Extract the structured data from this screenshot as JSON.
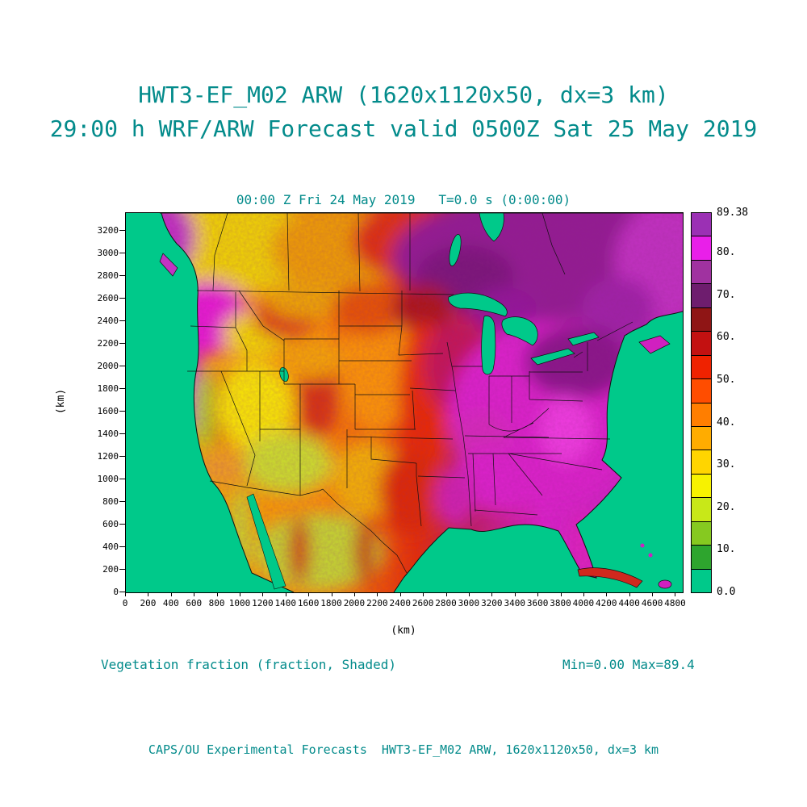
{
  "page": {
    "title_line1": "HWT3-EF_M02 ARW (1620x1120x50, dx=3 km)",
    "title_line2": "29:00 h WRF/ARW Forecast valid 0500Z Sat 25 May 2019",
    "footer": "CAPS/OU Experimental Forecasts  HWT3-EF_M02 ARW, 1620x1120x50, dx=3 km",
    "accent_color": "#038b8b"
  },
  "chart_data": {
    "type": "heatmap",
    "title": "00:00 Z Fri 24 May 2019   T=0.0 s (0:00:00)",
    "variable": "Vegetation fraction (fraction, Shaded)",
    "stats": "Min=0.00 Max=89.4",
    "xlabel": "(km)",
    "ylabel": "(km)",
    "x_range": [
      0,
      4860
    ],
    "y_range": [
      0,
      3360
    ],
    "x_ticks": [
      0,
      200,
      400,
      600,
      800,
      1000,
      1200,
      1400,
      1600,
      1800,
      2000,
      2200,
      2400,
      2600,
      2800,
      3000,
      3200,
      3400,
      3600,
      3800,
      4000,
      4200,
      4400,
      4600,
      4800
    ],
    "y_ticks": [
      0,
      200,
      400,
      600,
      800,
      1000,
      1200,
      1400,
      1600,
      1800,
      2000,
      2200,
      2400,
      2600,
      2800,
      3000,
      3200
    ],
    "grid": false,
    "legend_position": "right-colorbar",
    "region_depicted": "Continental United States, southern Canada, northern Mexico",
    "colorbar": {
      "min": 0.0,
      "max": 89.38,
      "labels": [
        "0.0",
        "10.",
        "20.",
        "30.",
        "40.",
        "50.",
        "60.",
        "70.",
        "80.",
        "89.38"
      ],
      "label_values": [
        0,
        10,
        20,
        30,
        40,
        50,
        60,
        70,
        80,
        89.38
      ],
      "colors_bottom_to_top": [
        "#00C98A",
        "#2EA52E",
        "#86C920",
        "#C8E818",
        "#F7F200",
        "#FFD500",
        "#FFAC00",
        "#FF7E00",
        "#FF4D00",
        "#EF2200",
        "#C31111",
        "#8F1515",
        "#6E1D6E",
        "#A032A0",
        "#E91FE9",
        "#9B30B4"
      ]
    }
  }
}
